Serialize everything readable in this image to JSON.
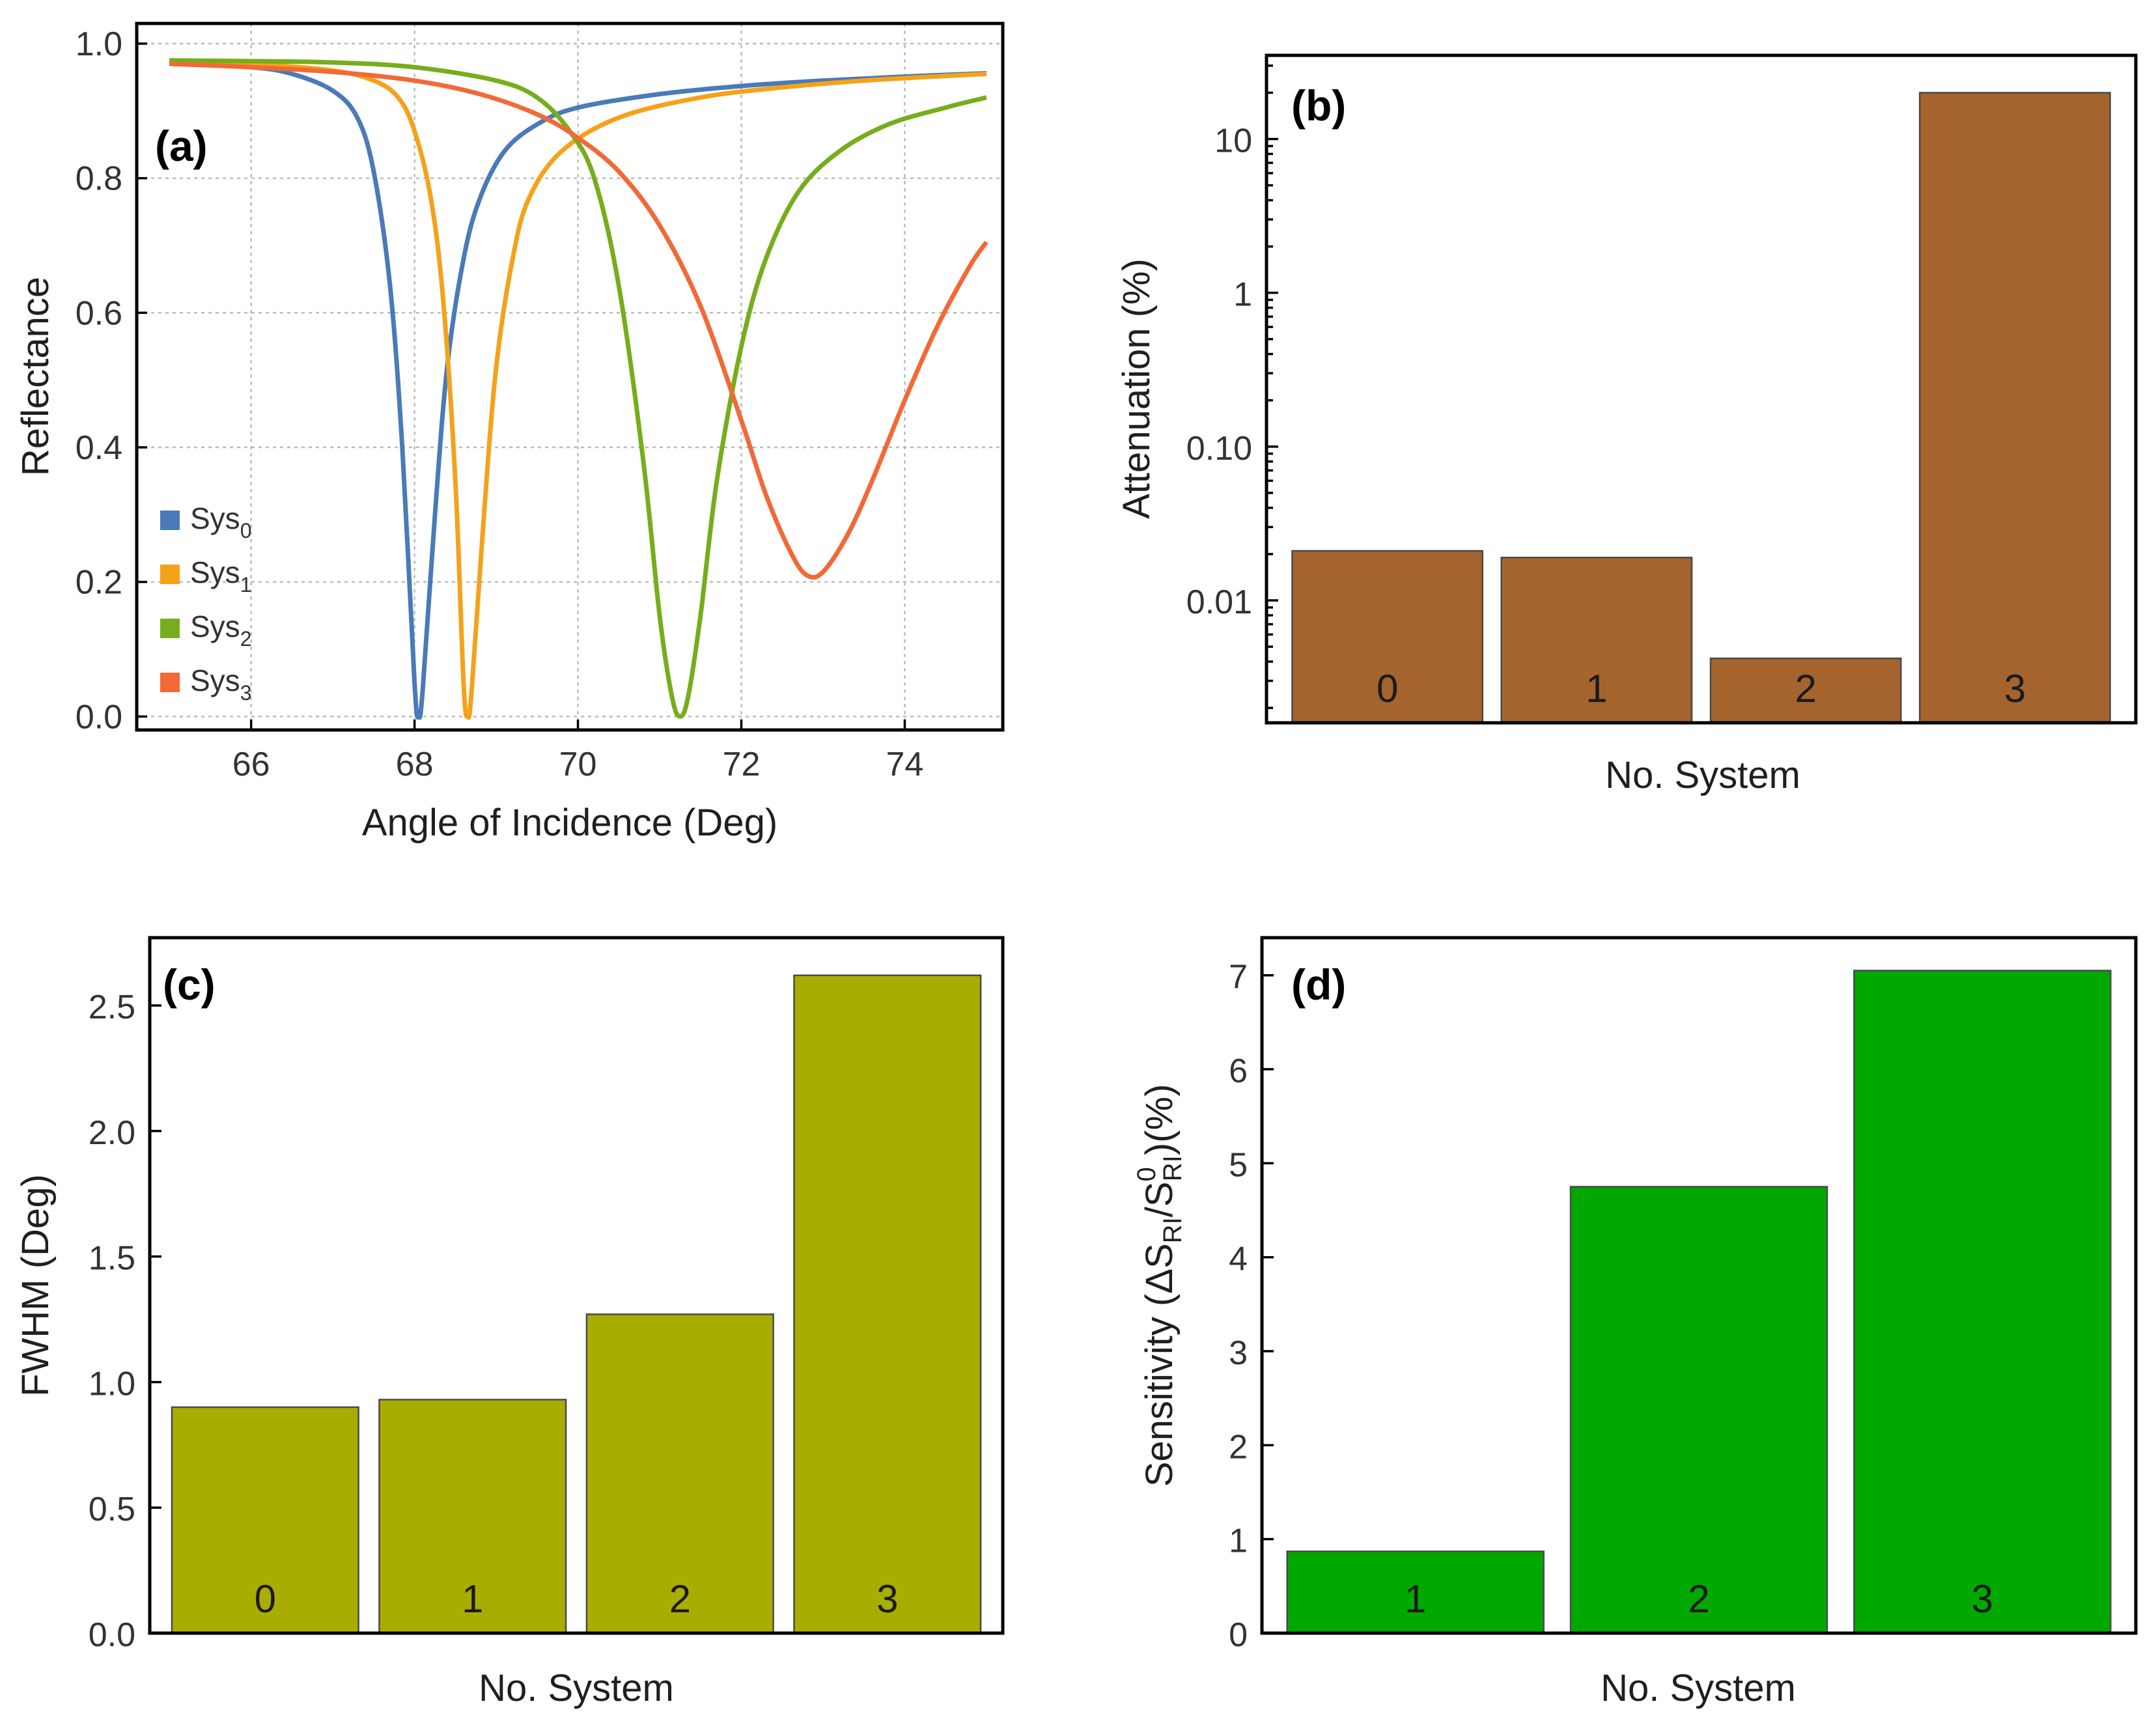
{
  "chart_data": [
    {
      "panel": "(a)",
      "type": "line",
      "xlabel": "Angle of Incidence (Deg)",
      "ylabel": "Reflectance",
      "xlim": [
        64.6,
        75.2
      ],
      "ylim": [
        -0.02,
        1.03
      ],
      "xticks": [
        66,
        68,
        70,
        72,
        74
      ],
      "xtick_labels": [
        "66",
        "68",
        "70",
        "72",
        "74"
      ],
      "yticks": [
        0,
        0.2,
        0.4,
        0.6,
        0.8,
        1.0
      ],
      "ytick_labels": [
        "0.0",
        "0.2",
        "0.4",
        "0.6",
        "0.8",
        "1.0"
      ],
      "grid": true,
      "legend_position": "bottom-left",
      "series": [
        {
          "name": "Sys",
          "sub": "0",
          "color": "#4a7ab8",
          "x": [
            65,
            66,
            66.5,
            67,
            67.3,
            67.5,
            67.7,
            67.85,
            68.0,
            68.05,
            68.1,
            68.25,
            68.4,
            68.6,
            68.8,
            69.1,
            69.5,
            70,
            71,
            72,
            73,
            74,
            75
          ],
          "y": [
            0.972,
            0.965,
            0.955,
            0.93,
            0.89,
            0.81,
            0.64,
            0.4,
            0.05,
            0.0,
            0.04,
            0.3,
            0.52,
            0.68,
            0.77,
            0.84,
            0.88,
            0.905,
            0.925,
            0.937,
            0.945,
            0.951,
            0.956
          ]
        },
        {
          "name": "Sys",
          "sub": "1",
          "color": "#f5a21b",
          "x": [
            65,
            66,
            67,
            67.5,
            67.8,
            68.0,
            68.2,
            68.35,
            68.5,
            68.6,
            68.65,
            68.7,
            68.85,
            69.0,
            69.2,
            69.4,
            69.8,
            70.5,
            71.5,
            72.5,
            73.5,
            74.5,
            75
          ],
          "y": [
            0.975,
            0.97,
            0.96,
            0.945,
            0.92,
            0.87,
            0.77,
            0.62,
            0.35,
            0.05,
            0.0,
            0.04,
            0.3,
            0.52,
            0.68,
            0.77,
            0.84,
            0.89,
            0.92,
            0.935,
            0.945,
            0.952,
            0.955
          ]
        },
        {
          "name": "Sys",
          "sub": "2",
          "color": "#77ad1c",
          "x": [
            65,
            66,
            67,
            68,
            69,
            69.5,
            69.9,
            70.2,
            70.5,
            70.8,
            71.0,
            71.15,
            71.25,
            71.35,
            71.5,
            71.7,
            72.0,
            72.3,
            72.7,
            73.2,
            73.8,
            74.5,
            75
          ],
          "y": [
            0.975,
            0.974,
            0.972,
            0.965,
            0.945,
            0.92,
            0.87,
            0.8,
            0.64,
            0.38,
            0.15,
            0.03,
            0.0,
            0.03,
            0.15,
            0.35,
            0.55,
            0.68,
            0.78,
            0.84,
            0.88,
            0.905,
            0.92
          ]
        },
        {
          "name": "Sys",
          "sub": "3",
          "color": "#f26937",
          "x": [
            65,
            66,
            67,
            68,
            68.8,
            69.5,
            70,
            70.5,
            71,
            71.5,
            72,
            72.3,
            72.6,
            72.8,
            73.0,
            73.3,
            73.6,
            74,
            74.4,
            74.8,
            75
          ],
          "y": [
            0.97,
            0.965,
            0.958,
            0.945,
            0.925,
            0.895,
            0.86,
            0.81,
            0.73,
            0.61,
            0.44,
            0.33,
            0.245,
            0.21,
            0.215,
            0.27,
            0.35,
            0.47,
            0.58,
            0.67,
            0.705
          ]
        }
      ]
    },
    {
      "panel": "(b)",
      "type": "bar",
      "scale": "log",
      "xlabel": "No. System",
      "ylabel": "Attenuation (%)",
      "categories": [
        "0",
        "1",
        "2",
        "3"
      ],
      "values": [
        0.021,
        0.019,
        0.0042,
        20
      ],
      "ylim": [
        0.0016,
        35
      ],
      "yticks": [
        0.01,
        0.1,
        1,
        10
      ],
      "ytick_labels": [
        "0.01",
        "0.10",
        "1",
        "10"
      ],
      "color": "#a5632d"
    },
    {
      "panel": "(c)",
      "type": "bar",
      "xlabel": "No. System",
      "ylabel": "FWHM (Deg)",
      "categories": [
        "0",
        "1",
        "2",
        "3"
      ],
      "values": [
        0.9,
        0.93,
        1.27,
        2.62
      ],
      "ylim": [
        0,
        2.77
      ],
      "yticks": [
        0,
        0.5,
        1.0,
        1.5,
        2.0,
        2.5
      ],
      "ytick_labels": [
        "0.0",
        "0.5",
        "1.0",
        "1.5",
        "2.0",
        "2.5"
      ],
      "color": "#a9ad00"
    },
    {
      "panel": "(d)",
      "type": "bar",
      "xlabel": "No. System",
      "ylabel": "Sensitivity (ΔS",
      "ylabel_sub1": "RI",
      "ylabel_mid": "/S",
      "ylabel_sup": "0",
      "ylabel_sub2": "RI",
      "ylabel_end": ")(%)",
      "categories": [
        "1",
        "2",
        "3"
      ],
      "values": [
        0.87,
        4.75,
        7.05
      ],
      "ylim": [
        0,
        7.4
      ],
      "yticks": [
        0,
        1,
        2,
        3,
        4,
        5,
        6,
        7
      ],
      "ytick_labels": [
        "0",
        "1",
        "2",
        "3",
        "4",
        "5",
        "6",
        "7"
      ],
      "color": "#00a800"
    }
  ]
}
